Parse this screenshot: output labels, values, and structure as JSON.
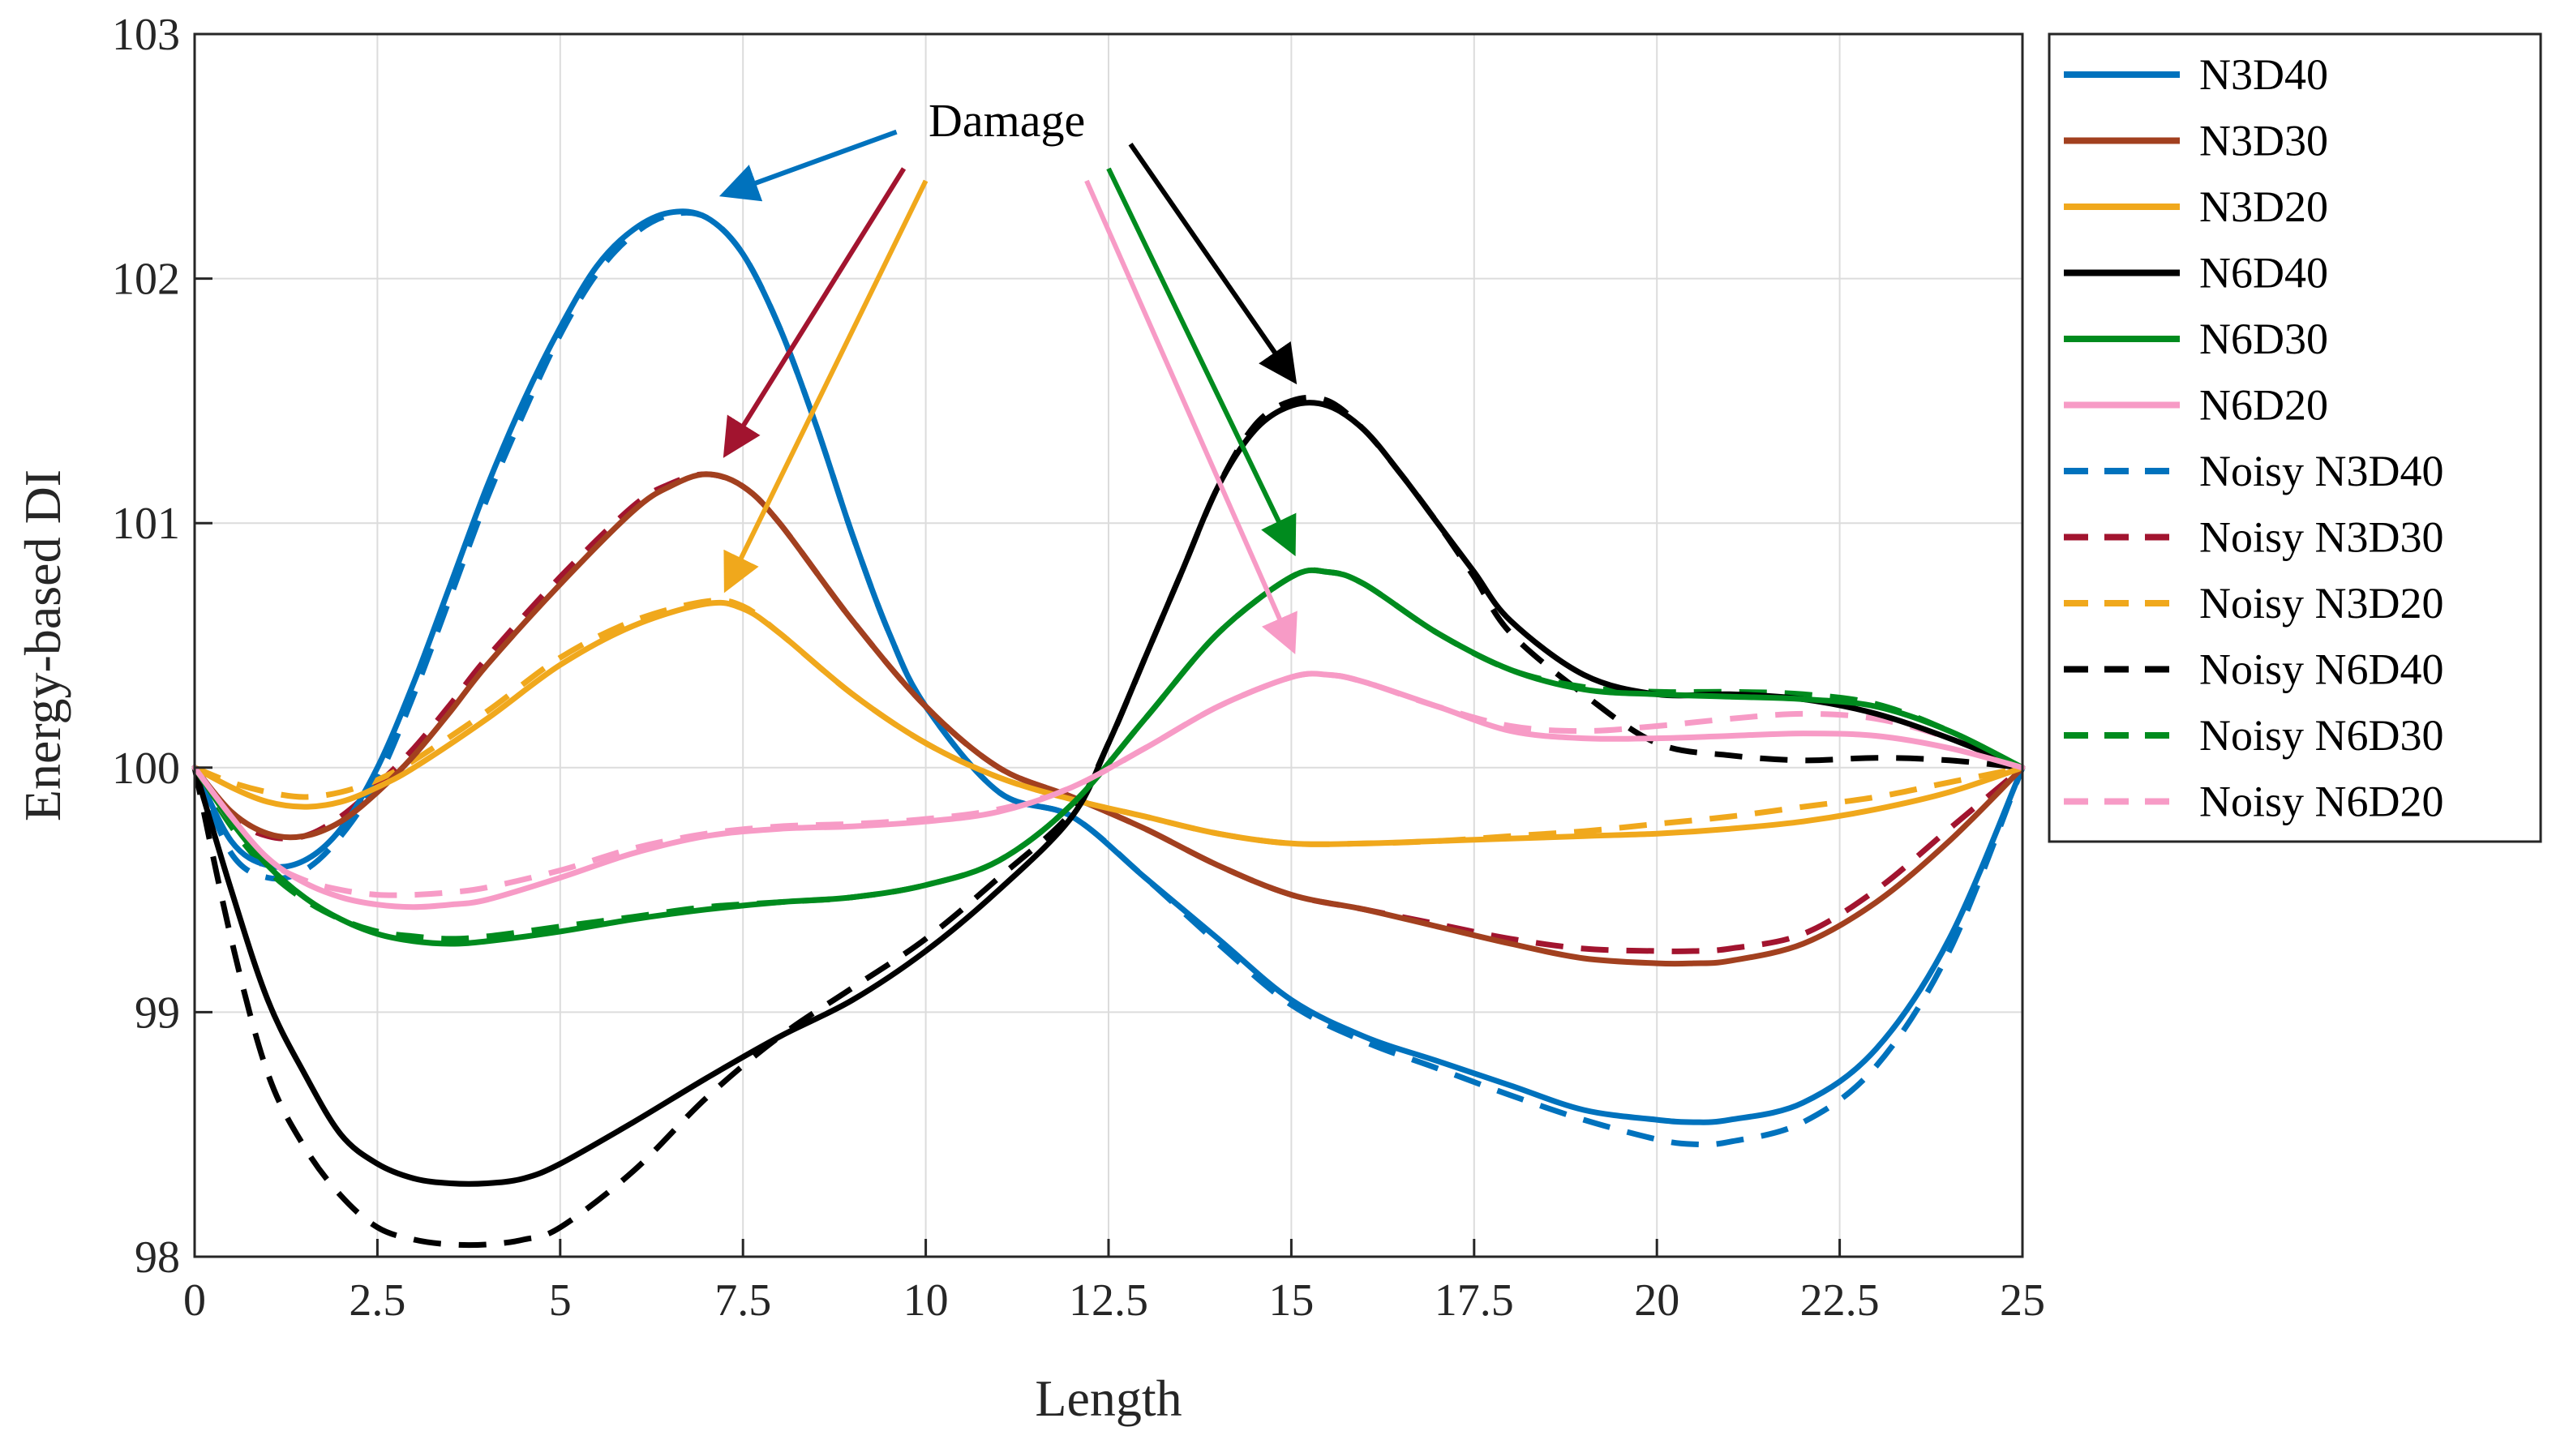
{
  "chart_data": {
    "type": "line",
    "title": "",
    "xlabel": "Length",
    "ylabel": "Energy-based DI",
    "xlim": [
      0,
      25
    ],
    "ylim": [
      98,
      103
    ],
    "xticks": [
      0,
      2.5,
      5,
      7.5,
      10,
      12.5,
      15,
      17.5,
      20,
      22.5,
      25
    ],
    "xtick_labels": [
      "0",
      "2.5",
      "5",
      "7.5",
      "10",
      "12.5",
      "15",
      "17.5",
      "20",
      "22.5",
      "25"
    ],
    "yticks": [
      98,
      99,
      100,
      101,
      102,
      103
    ],
    "ytick_labels": [
      "98",
      "99",
      "100",
      "101",
      "102",
      "103"
    ],
    "grid": true,
    "legend_position": "outside-right",
    "series": [
      {
        "name": "N3D40",
        "color": "#0072BD",
        "style": "solid",
        "x": [
          0,
          0.5,
          1,
          1.5,
          2,
          2.5,
          3,
          3.5,
          4,
          4.5,
          5,
          5.5,
          6,
          6.5,
          7,
          7.5,
          8,
          8.5,
          9,
          9.5,
          10,
          11,
          12,
          13,
          14,
          15,
          16,
          17,
          18,
          19,
          20,
          20.5,
          21,
          22,
          23,
          24,
          25
        ],
        "y": [
          100,
          99.7,
          99.6,
          99.62,
          99.75,
          100.0,
          100.35,
          100.75,
          101.15,
          101.5,
          101.8,
          102.05,
          102.2,
          102.27,
          102.25,
          102.1,
          101.8,
          101.4,
          100.95,
          100.55,
          100.25,
          99.9,
          99.8,
          99.55,
          99.3,
          99.05,
          98.9,
          98.8,
          98.7,
          98.6,
          98.56,
          98.55,
          98.56,
          98.63,
          98.85,
          99.3,
          100
        ]
      },
      {
        "name": "N3D30",
        "color": "#A2401F",
        "style": "solid",
        "x": [
          0,
          0.5,
          1,
          1.5,
          2,
          2.5,
          3,
          3.5,
          4,
          5,
          6,
          6.5,
          7,
          7.5,
          8,
          9,
          10,
          11,
          12,
          13,
          14,
          15,
          16,
          17,
          18,
          19,
          20,
          20.5,
          21,
          22,
          23,
          24,
          25
        ],
        "y": [
          100,
          99.82,
          99.73,
          99.72,
          99.78,
          99.9,
          100.05,
          100.23,
          100.42,
          100.75,
          101.05,
          101.15,
          101.2,
          101.15,
          101.0,
          100.6,
          100.25,
          100.0,
          99.88,
          99.75,
          99.6,
          99.48,
          99.42,
          99.35,
          99.28,
          99.22,
          99.2,
          99.2,
          99.21,
          99.28,
          99.45,
          99.7,
          100
        ]
      },
      {
        "name": "N3D20",
        "color": "#F0A81C",
        "style": "solid",
        "x": [
          0,
          0.5,
          1,
          1.5,
          2,
          2.5,
          3,
          4,
          5,
          6,
          7,
          7.5,
          8,
          9,
          10,
          11,
          12,
          13,
          14,
          15,
          16,
          17,
          18,
          19,
          20,
          21,
          22,
          23,
          24,
          25
        ],
        "y": [
          100,
          99.92,
          99.86,
          99.84,
          99.86,
          99.92,
          100.0,
          100.2,
          100.42,
          100.58,
          100.67,
          100.65,
          100.55,
          100.3,
          100.1,
          99.96,
          99.87,
          99.8,
          99.73,
          99.69,
          99.69,
          99.7,
          99.71,
          99.72,
          99.73,
          99.75,
          99.78,
          99.83,
          99.9,
          100
        ]
      },
      {
        "name": "N6D40",
        "color": "#000000",
        "style": "solid",
        "x": [
          0,
          0.5,
          1,
          1.5,
          2,
          2.5,
          3,
          3.5,
          4,
          4.5,
          5,
          6,
          7,
          8,
          9,
          10,
          11,
          12,
          12.5,
          13,
          13.5,
          14,
          14.5,
          15,
          15.5,
          16,
          16.5,
          17,
          17.5,
          18,
          19,
          20,
          21,
          22,
          23,
          24,
          25
        ],
        "y": [
          100,
          99.5,
          99.05,
          98.75,
          98.5,
          98.38,
          98.32,
          98.3,
          98.3,
          98.32,
          98.38,
          98.55,
          98.73,
          98.9,
          99.05,
          99.25,
          99.5,
          99.8,
          100.1,
          100.45,
          100.8,
          101.15,
          101.38,
          101.48,
          101.48,
          101.38,
          101.2,
          101.0,
          100.8,
          100.6,
          100.38,
          100.3,
          100.3,
          100.28,
          100.22,
          100.12,
          100
        ]
      },
      {
        "name": "N6D30",
        "color": "#008B1E",
        "style": "solid",
        "x": [
          0,
          0.5,
          1,
          1.5,
          2,
          2.5,
          3,
          3.5,
          4,
          5,
          6,
          7,
          8,
          9,
          10,
          11,
          12,
          13,
          14,
          15,
          15.5,
          16,
          17,
          18,
          19,
          20,
          21,
          22,
          23,
          24,
          25
        ],
        "y": [
          100,
          99.78,
          99.6,
          99.47,
          99.38,
          99.32,
          99.29,
          99.28,
          99.29,
          99.33,
          99.38,
          99.42,
          99.45,
          99.47,
          99.52,
          99.62,
          99.85,
          100.2,
          100.55,
          100.78,
          100.8,
          100.75,
          100.55,
          100.4,
          100.32,
          100.3,
          100.29,
          100.28,
          100.25,
          100.15,
          100
        ]
      },
      {
        "name": "N6D20",
        "color": "#F79BC6",
        "style": "solid",
        "x": [
          0,
          0.5,
          1,
          1.5,
          2,
          2.5,
          3,
          3.5,
          4,
          5,
          6,
          7,
          8,
          9,
          10,
          11,
          12,
          13,
          14,
          15,
          15.5,
          16,
          17,
          18,
          19,
          20,
          21,
          22,
          23,
          24,
          25
        ],
        "y": [
          100,
          99.8,
          99.63,
          99.53,
          99.47,
          99.44,
          99.43,
          99.44,
          99.46,
          99.55,
          99.65,
          99.72,
          99.75,
          99.76,
          99.78,
          99.82,
          99.92,
          100.08,
          100.25,
          100.37,
          100.38,
          100.35,
          100.25,
          100.15,
          100.12,
          100.12,
          100.13,
          100.14,
          100.13,
          100.08,
          100
        ]
      },
      {
        "name": "Noisy N3D40",
        "color": "#0072BD",
        "style": "dashed",
        "x": [
          0,
          0.5,
          1,
          1.5,
          2,
          2.5,
          3,
          3.5,
          4,
          4.5,
          5,
          5.5,
          6,
          6.5,
          7,
          7.5,
          8,
          8.5,
          9,
          9.5,
          10,
          11,
          12,
          13,
          14,
          15,
          16,
          17,
          18,
          19,
          20,
          20.5,
          21,
          22,
          23,
          24,
          25
        ],
        "y": [
          100,
          99.65,
          99.55,
          99.58,
          99.72,
          99.95,
          100.3,
          100.7,
          101.1,
          101.45,
          101.77,
          102.02,
          102.18,
          102.26,
          102.25,
          102.1,
          101.8,
          101.4,
          100.95,
          100.55,
          100.25,
          99.9,
          99.8,
          99.55,
          99.28,
          99.03,
          98.88,
          98.77,
          98.66,
          98.56,
          98.48,
          98.46,
          98.47,
          98.55,
          98.78,
          99.25,
          100
        ]
      },
      {
        "name": "Noisy N3D30",
        "color": "#A2142F",
        "style": "dashed",
        "x": [
          0,
          0.5,
          1,
          1.5,
          2,
          2.5,
          3,
          3.5,
          4,
          5,
          6,
          6.5,
          7,
          7.5,
          8,
          9,
          10,
          11,
          12,
          13,
          14,
          15,
          16,
          17,
          18,
          19,
          20,
          20.5,
          21,
          22,
          23,
          24,
          25
        ],
        "y": [
          100,
          99.8,
          99.72,
          99.72,
          99.8,
          99.93,
          100.08,
          100.26,
          100.45,
          100.78,
          101.07,
          101.16,
          101.2,
          101.15,
          101.0,
          100.6,
          100.25,
          100.0,
          99.88,
          99.75,
          99.6,
          99.48,
          99.42,
          99.36,
          99.3,
          99.26,
          99.25,
          99.25,
          99.26,
          99.32,
          99.5,
          99.75,
          100
        ]
      },
      {
        "name": "Noisy N3D20",
        "color": "#F0A81C",
        "style": "dashed",
        "x": [
          0,
          0.5,
          1,
          1.5,
          2,
          2.5,
          3,
          4,
          5,
          6,
          7,
          7.5,
          8,
          9,
          10,
          11,
          12,
          13,
          14,
          15,
          16,
          17,
          18,
          19,
          20,
          21,
          22,
          23,
          24,
          25
        ],
        "y": [
          100,
          99.94,
          99.9,
          99.88,
          99.9,
          99.95,
          100.03,
          100.23,
          100.45,
          100.6,
          100.68,
          100.66,
          100.55,
          100.3,
          100.1,
          99.96,
          99.87,
          99.8,
          99.73,
          99.69,
          99.69,
          99.7,
          99.72,
          99.74,
          99.77,
          99.8,
          99.84,
          99.88,
          99.94,
          100
        ]
      },
      {
        "name": "Noisy N6D40",
        "color": "#000000",
        "style": "dashed",
        "x": [
          0,
          0.5,
          1,
          1.5,
          2,
          2.5,
          3,
          3.5,
          4,
          4.5,
          5,
          6,
          7,
          8,
          9,
          10,
          11,
          12,
          12.5,
          13,
          13.5,
          14,
          14.5,
          15,
          15.5,
          16,
          16.5,
          17,
          17.5,
          18,
          19,
          20,
          21,
          22,
          23,
          24,
          25
        ],
        "y": [
          100,
          99.3,
          98.75,
          98.45,
          98.25,
          98.12,
          98.07,
          98.05,
          98.05,
          98.07,
          98.12,
          98.35,
          98.65,
          98.9,
          99.1,
          99.3,
          99.55,
          99.82,
          100.1,
          100.45,
          100.8,
          101.15,
          101.4,
          101.5,
          101.5,
          101.38,
          101.2,
          101.0,
          100.78,
          100.55,
          100.3,
          100.1,
          100.05,
          100.03,
          100.04,
          100.03,
          100
        ]
      },
      {
        "name": "Noisy N6D30",
        "color": "#008B1E",
        "style": "dashed",
        "x": [
          0,
          0.5,
          1,
          1.5,
          2,
          2.5,
          3,
          3.5,
          4,
          5,
          6,
          7,
          8,
          9,
          10,
          11,
          12,
          13,
          14,
          15,
          15.5,
          16,
          17,
          18,
          19,
          20,
          21,
          22,
          23,
          24,
          25
        ],
        "y": [
          100,
          99.76,
          99.58,
          99.46,
          99.38,
          99.33,
          99.31,
          99.3,
          99.31,
          99.35,
          99.39,
          99.43,
          99.45,
          99.47,
          99.52,
          99.62,
          99.85,
          100.2,
          100.55,
          100.78,
          100.8,
          100.75,
          100.55,
          100.4,
          100.33,
          100.31,
          100.31,
          100.3,
          100.26,
          100.15,
          100
        ]
      },
      {
        "name": "Noisy N6D20",
        "color": "#F79BC6",
        "style": "dashed",
        "x": [
          0,
          0.5,
          1,
          1.5,
          2,
          2.5,
          3,
          3.5,
          4,
          5,
          6,
          7,
          8,
          9,
          10,
          11,
          12,
          13,
          14,
          15,
          15.5,
          16,
          17,
          18,
          19,
          20,
          21,
          22,
          23,
          24,
          25
        ],
        "y": [
          100,
          99.78,
          99.62,
          99.54,
          99.5,
          99.48,
          99.48,
          99.49,
          99.51,
          99.58,
          99.67,
          99.73,
          99.76,
          99.77,
          99.79,
          99.83,
          99.92,
          100.08,
          100.25,
          100.37,
          100.38,
          100.35,
          100.25,
          100.17,
          100.15,
          100.17,
          100.2,
          100.22,
          100.2,
          100.12,
          100
        ]
      }
    ],
    "annotation": {
      "text": "Damage",
      "arrows": [
        {
          "color": "#0072BD",
          "from": [
            9.6,
            102.6
          ],
          "to": [
            7.3,
            102.35
          ]
        },
        {
          "color": "#A2142F",
          "from": [
            9.7,
            102.45
          ],
          "to": [
            7.3,
            101.3
          ]
        },
        {
          "color": "#F0A81C",
          "from": [
            10.0,
            102.4
          ],
          "to": [
            7.3,
            100.75
          ]
        },
        {
          "color": "#F79BC6",
          "from": [
            12.2,
            102.4
          ],
          "to": [
            15.0,
            100.5
          ]
        },
        {
          "color": "#008B1E",
          "from": [
            12.5,
            102.45
          ],
          "to": [
            15.0,
            100.9
          ]
        },
        {
          "color": "#000000",
          "from": [
            12.8,
            102.55
          ],
          "to": [
            15.0,
            101.6
          ]
        }
      ]
    }
  }
}
